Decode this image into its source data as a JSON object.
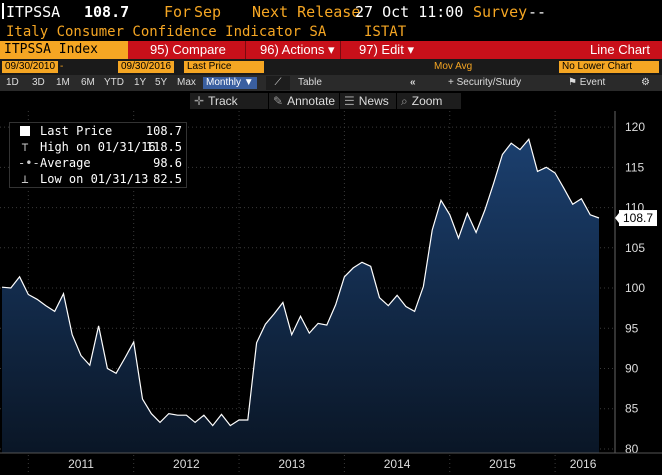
{
  "header": {
    "ticker": "ITPSSA",
    "price": "108.7",
    "for_label": "For",
    "for_value": "Sep",
    "next_release_label": "Next Release",
    "next_release_value": "27 Oct 11:00",
    "survey_label": "Survey",
    "survey_value": "--",
    "subtitle": "Italy Consumer Confidence Indicator SA",
    "source": "ISTAT"
  },
  "function_bar": {
    "security": "ITPSSA Index",
    "compare": "95) Compare",
    "actions": "96) Actions",
    "edit": "97) Edit",
    "edit_arrow": "▾",
    "actions_arrow": "▾",
    "chart_type": "Line Chart"
  },
  "date_row": {
    "start_date": "09/30/2010",
    "end_date": "09/30/2016",
    "field": "Last Price",
    "mov_avg": "Mov Avg",
    "lower_chart": "No Lower Chart"
  },
  "period_row": {
    "periods": [
      "1D",
      "3D",
      "1M",
      "6M",
      "YTD",
      "1Y",
      "5Y",
      "Max"
    ],
    "frequency": "Monthly",
    "table": "Table",
    "security_study": "Security/Study",
    "event": "Event"
  },
  "tools": {
    "track": "Track",
    "annotate": "Annotate",
    "news": "News",
    "zoom": "Zoom"
  },
  "legend": {
    "last_price_label": "Last Price",
    "last_price_value": "108.7",
    "high_label": "High on 01/31/16",
    "high_value": "118.5",
    "average_label": "Average",
    "average_value": "98.6",
    "low_label": "Low on 01/31/13",
    "low_value": "82.5"
  },
  "colors": {
    "accent": "#f5a623",
    "bar_red": "#c8101a",
    "fill_top": "#1b3f6e",
    "fill_bottom": "#0a1626",
    "line": "#ffffff"
  },
  "chart_data": {
    "type": "area",
    "title": "",
    "xlabel": "",
    "ylabel": "",
    "ylim": [
      79.5,
      122
    ],
    "yticks": [
      80,
      85,
      90,
      95,
      100,
      105,
      110,
      115,
      120
    ],
    "xticks": [
      "2011",
      "2012",
      "2013",
      "2014",
      "2015",
      "2016"
    ],
    "grid": true,
    "last_value_label": "108.7",
    "series": [
      {
        "values": [
          100.1,
          100.0,
          101.4,
          99.2,
          98.6,
          97.8,
          97.1,
          99.3,
          94.2,
          91.6,
          90.4,
          95.3,
          90.0,
          89.4,
          91.3,
          93.3,
          86.2,
          84.4,
          83.3,
          84.4,
          84.2,
          84.2,
          83.3,
          84.2,
          82.9,
          84.3,
          82.9,
          83.6,
          83.6,
          93.2,
          95.5,
          96.8,
          98.2,
          94.2,
          96.5,
          94.4,
          95.6,
          95.4,
          97.9,
          101.4,
          102.5,
          103.2,
          102.7,
          98.8,
          97.8,
          99.1,
          97.7,
          97.1,
          100.2,
          107.2,
          110.9,
          109.1,
          106.2,
          109.3,
          106.9,
          109.7,
          113.0,
          116.6,
          118.0,
          117.2,
          118.5,
          114.5,
          115.0,
          114.3,
          112.4,
          110.4,
          111.1,
          109.1,
          108.7
        ]
      }
    ]
  }
}
